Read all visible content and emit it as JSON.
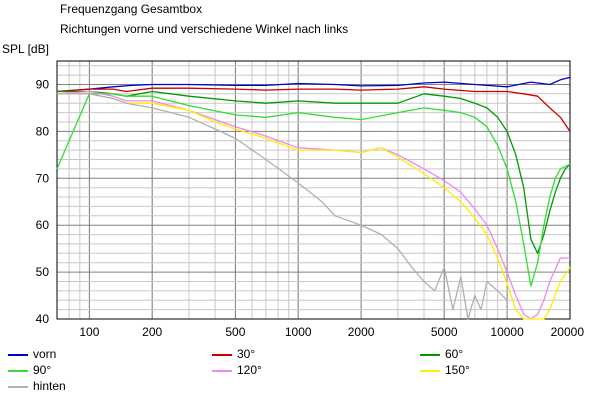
{
  "chart_data": {
    "type": "line",
    "title": "Frequenzgang Gesamtbox",
    "subtitle": "Richtungen vorne und verschiedene Winkel nach links",
    "ylabel": "SPL [dB]",
    "xscale": "log",
    "xlim": [
      70,
      20000
    ],
    "ylim": [
      40,
      95
    ],
    "x_ticks": [
      100,
      200,
      500,
      1000,
      2000,
      5000,
      10000,
      20000
    ],
    "x_tick_labels": [
      "100",
      "200",
      "500",
      "1000",
      "2000",
      "5000",
      "10000",
      "20000"
    ],
    "y_ticks": [
      40,
      50,
      60,
      70,
      80,
      90
    ],
    "grid": true,
    "legend_position": "bottom",
    "series": [
      {
        "name": "vorn",
        "color": "#0000cc",
        "x": [
          70,
          100,
          130,
          160,
          200,
          300,
          500,
          700,
          1000,
          1500,
          2000,
          3000,
          4000,
          5000,
          7000,
          10000,
          13000,
          16000,
          18000,
          20000
        ],
        "y": [
          88.5,
          89,
          89.5,
          89.8,
          90,
          90,
          89.8,
          89.8,
          90.2,
          90,
          89.7,
          89.8,
          90.3,
          90.5,
          90,
          89.5,
          90.5,
          90,
          91,
          91.5
        ]
      },
      {
        "name": "30°",
        "color": "#cc0000",
        "x": [
          70,
          100,
          130,
          150,
          200,
          300,
          500,
          700,
          1000,
          1500,
          2000,
          3000,
          4000,
          5000,
          7000,
          10000,
          12000,
          14000,
          16000,
          18000,
          20000
        ],
        "y": [
          88.5,
          89,
          89,
          88.5,
          89.2,
          89.2,
          89,
          88.8,
          89,
          89,
          88.8,
          89,
          89.5,
          89,
          88.5,
          88.5,
          88,
          87.5,
          85,
          83,
          80
        ]
      },
      {
        "name": "60°",
        "color": "#009900",
        "x": [
          70,
          100,
          130,
          150,
          200,
          300,
          500,
          700,
          1000,
          1500,
          2000,
          3000,
          4000,
          5000,
          6000,
          7000,
          8000,
          9000,
          10000,
          11000,
          12000,
          13000,
          14000,
          15000,
          16000,
          17000,
          18000,
          19000,
          20000
        ],
        "y": [
          88.5,
          88.5,
          88,
          87.5,
          88.5,
          87.5,
          86.5,
          86,
          86.5,
          86,
          86,
          86,
          88,
          87.5,
          87,
          86,
          85,
          83,
          80,
          75,
          68,
          57,
          54,
          58,
          63,
          67,
          70,
          72,
          73
        ]
      },
      {
        "name": "90°",
        "color": "#33dd33",
        "x": [
          70,
          100,
          130,
          150,
          200,
          300,
          500,
          700,
          1000,
          1500,
          2000,
          3000,
          4000,
          5000,
          6000,
          7000,
          8000,
          9000,
          10000,
          11000,
          12000,
          13000,
          14000,
          15000,
          16000,
          17000,
          18000,
          20000
        ],
        "y": [
          72,
          88,
          88,
          87.5,
          87.5,
          85.5,
          83.5,
          83,
          84,
          83,
          82.5,
          84,
          85,
          84.5,
          84,
          83,
          81,
          77,
          72,
          65,
          56,
          47,
          52,
          60,
          66,
          70,
          72,
          73
        ]
      },
      {
        "name": "120°",
        "color": "#ee88ee",
        "x": [
          70,
          100,
          130,
          150,
          200,
          300,
          400,
          500,
          700,
          1000,
          1500,
          2000,
          2500,
          3000,
          4000,
          5000,
          6000,
          7000,
          8000,
          9000,
          10000,
          11000,
          12000,
          13000,
          14000,
          15000,
          16000,
          18000,
          20000
        ],
        "y": [
          88,
          88.5,
          87.5,
          86.5,
          86.5,
          84.5,
          82.5,
          81,
          79,
          76.5,
          76,
          75.5,
          76.5,
          75,
          72,
          69.5,
          67,
          63.5,
          60,
          55,
          50,
          45,
          41,
          40,
          41,
          44,
          48,
          53,
          53
        ]
      },
      {
        "name": "150°",
        "color": "#ffee00",
        "x": [
          70,
          100,
          130,
          150,
          200,
          300,
          400,
          500,
          700,
          1000,
          1500,
          2000,
          2500,
          3000,
          4000,
          5000,
          6000,
          7000,
          8000,
          9000,
          10000,
          11000,
          12000,
          13000,
          14000,
          15000,
          16000,
          18000,
          20000
        ],
        "y": [
          88,
          88,
          87,
          86,
          86,
          84.5,
          82,
          80.5,
          78.5,
          76,
          76,
          75.5,
          76.5,
          74.5,
          71,
          68,
          65,
          61.5,
          58,
          53,
          47.5,
          42,
          40,
          40,
          40,
          40,
          42,
          48,
          51
        ]
      },
      {
        "name": "hinten",
        "color": "#b0b0b0",
        "x": [
          70,
          100,
          130,
          150,
          200,
          300,
          400,
          500,
          700,
          1000,
          1300,
          1500,
          2000,
          2500,
          3000,
          3500,
          4000,
          4500,
          5000,
          5500,
          6000,
          6500,
          7000,
          7500,
          8000,
          9000,
          10000
        ],
        "y": [
          88,
          88,
          87,
          86,
          85,
          83,
          80.5,
          78.5,
          74,
          69,
          65,
          62,
          60,
          58,
          55,
          51,
          48,
          46,
          51,
          42,
          49,
          40,
          45,
          42,
          48,
          46,
          44
        ]
      }
    ]
  }
}
